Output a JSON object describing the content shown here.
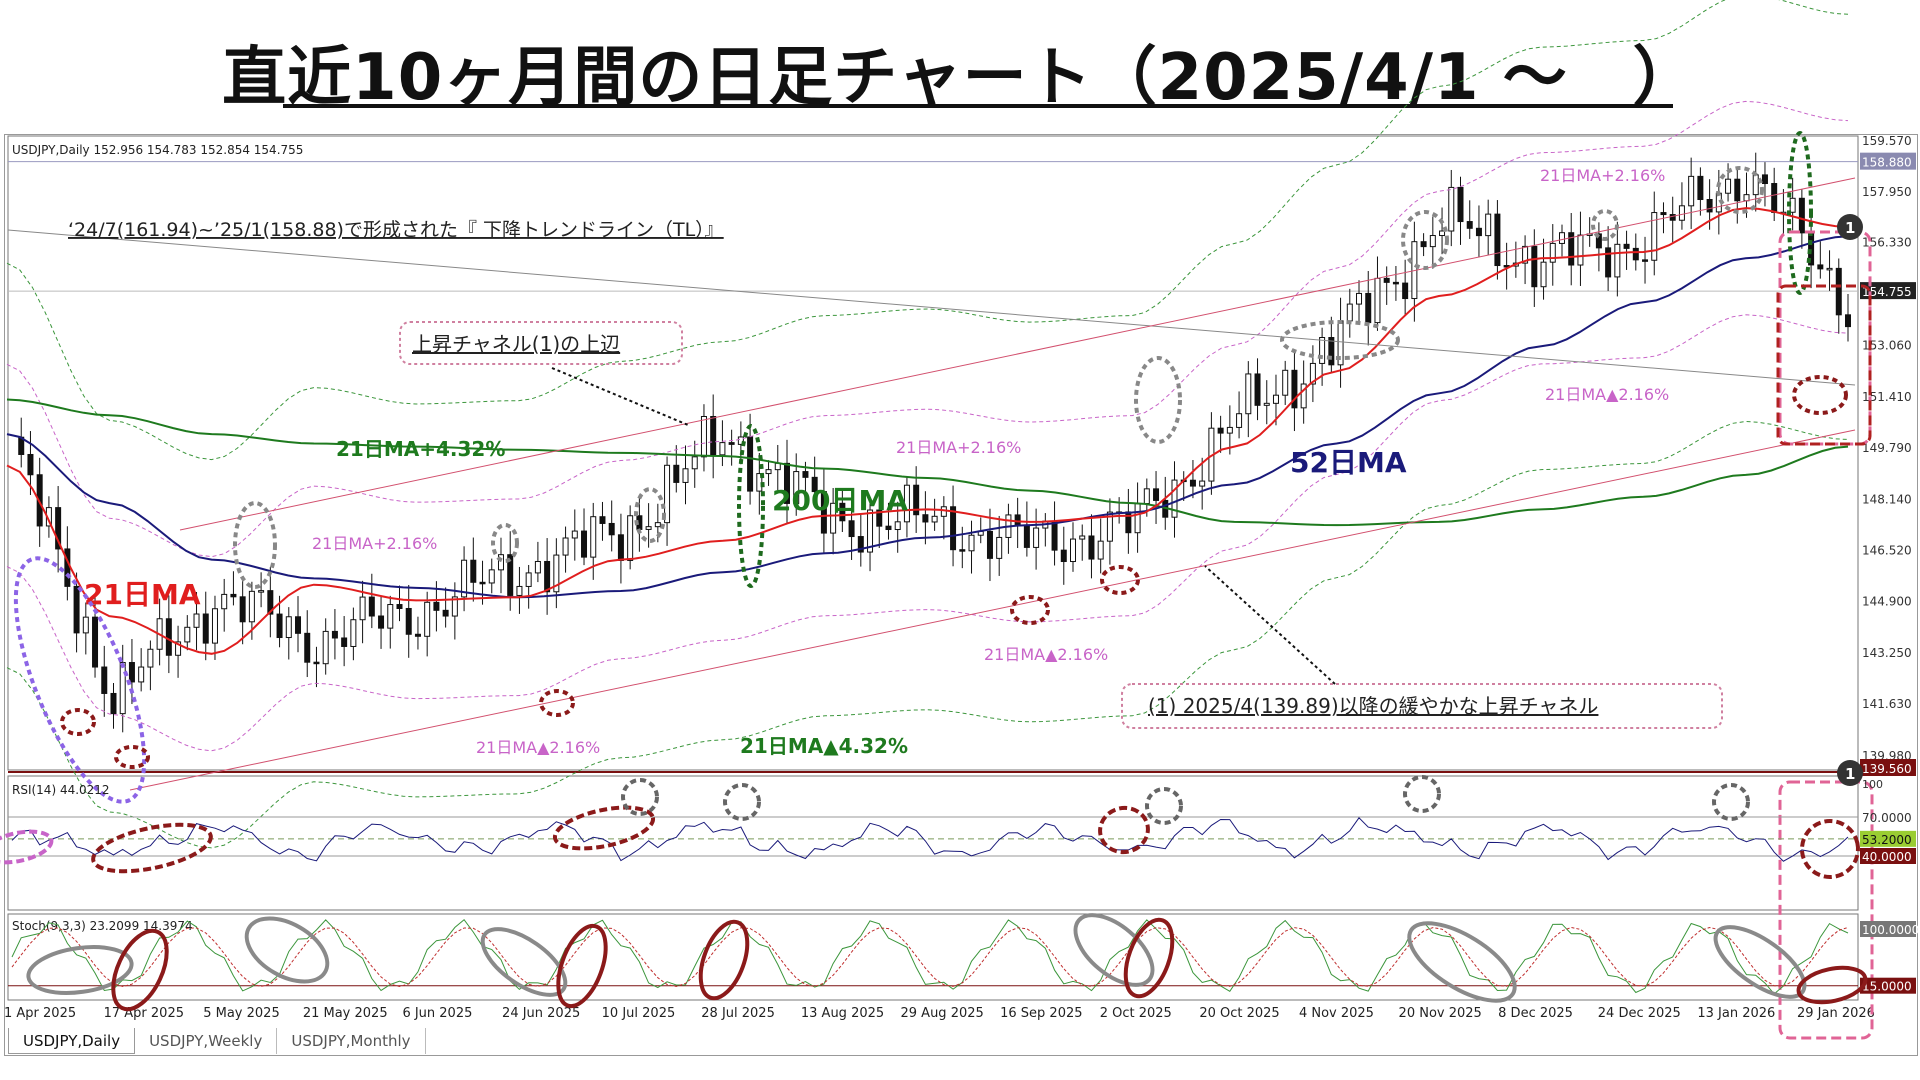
{
  "title": "直近10ヶ月間の日足チャート（2025/4/1 ～　）",
  "header": "USDJPY,Daily  152.956 154.783 152.854 154.755",
  "tabs": [
    "USDJPY,Daily",
    "USDJPY,Weekly",
    "USDJPY,Monthly"
  ],
  "annotations": {
    "trendline": "‘24/7(161.94)~’25/1(158.88)で形成された『 下降トレンドライン（TL）』",
    "channel_top": "上昇チャネル(1)の上辺",
    "channel_main": "(1) 2025/4(139.89)以降の緩やかな上昇チャネル",
    "ma21": "21日MA",
    "ma52": "52日MA",
    "ma200": "200日MA",
    "plus432": "21日MA+4.32%",
    "minus432": "21日MA▲4.32%",
    "plus216_a": "21日MA+2.16%",
    "plus216_b": "21日MA+2.16%",
    "plus216_c": "21日MA+2.16%",
    "minus216_a": "21日MA▲2.16%",
    "minus216_b": "21日MA▲2.16%",
    "minus216_c": "21日MA▲2.16%",
    "marker1": "1",
    "marker2": "1"
  },
  "price_axis": [
    "159.570",
    "158.880",
    "157.950",
    "156.330",
    "154.755",
    "153.060",
    "151.410",
    "149.790",
    "148.140",
    "146.520",
    "144.900",
    "143.250",
    "141.630",
    "139.980",
    "139.560"
  ],
  "rsi": {
    "label": "RSI(14) 44.0212",
    "levels": [
      "70.0000",
      "53.2000",
      "40.0000"
    ],
    "top_tick": "100"
  },
  "stoch": {
    "label": "Stoch(9,3,3) 23.2099 14.3974",
    "levels": [
      "100.0000",
      "15.0000"
    ]
  },
  "date_axis": [
    "1 Apr 2025",
    "17 Apr 2025",
    "5 May 2025",
    "21 May 2025",
    "6 Jun 2025",
    "24 Jun 2025",
    "10 Jul 2025",
    "28 Jul 2025",
    "13 Aug 2025",
    "29 Aug 2025",
    "16 Sep 2025",
    "2 Oct 2025",
    "20 Oct 2025",
    "4 Nov 2025",
    "20 Nov 2025",
    "8 Dec 2025",
    "24 Dec 2025",
    "13 Jan 2026",
    "29 Jan 2026"
  ],
  "colors": {
    "ma21": "#e01e1e",
    "ma52": "#1a1a7a",
    "ma200": "#1e7a1e",
    "band": "#c864c8",
    "band432": "#3c963c",
    "channel": "#d2506e",
    "ellipse_dark": "#8b1a1a",
    "ellipse_gray": "#888888",
    "ellipse_purple": "#8c64e6",
    "highlight": "#e06496"
  },
  "chart_data": {
    "type": "candlestick",
    "title": "USDJPY,Daily",
    "ylim": [
      139.56,
      159.57
    ],
    "ohlc_last": {
      "open": 152.956,
      "high": 154.783,
      "low": 152.854,
      "close": 154.755
    },
    "x": [
      "1 Apr 2025",
      "17 Apr 2025",
      "5 May 2025",
      "21 May 2025",
      "6 Jun 2025",
      "24 Jun 2025",
      "10 Jul 2025",
      "28 Jul 2025",
      "13 Aug 2025",
      "29 Aug 2025",
      "16 Sep 2025",
      "2 Oct 2025",
      "20 Oct 2025",
      "4 Nov 2025",
      "20 Nov 2025",
      "8 Dec 2025",
      "24 Dec 2025",
      "13 Jan 2026",
      "29 Jan 2026"
    ],
    "close": [
      149.8,
      141.8,
      145.0,
      143.6,
      144.6,
      145.9,
      147.1,
      150.2,
      147.5,
      147.4,
      146.7,
      147.3,
      150.6,
      153.2,
      157.0,
      155.7,
      156.4,
      158.6,
      154.4
    ],
    "series": [
      {
        "name": "21日MA",
        "values": [
          149.2,
          144.4,
          143.2,
          145.4,
          144.9,
          145.0,
          146.2,
          146.8,
          147.6,
          147.8,
          147.4,
          147.6,
          149.8,
          152.2,
          154.6,
          155.8,
          156.0,
          157.4,
          156.8
        ]
      },
      {
        "name": "52日MA",
        "values": [
          150.2,
          148.0,
          146.2,
          145.6,
          145.3,
          145.0,
          145.2,
          145.8,
          146.4,
          146.9,
          147.3,
          147.7,
          148.6,
          149.9,
          151.5,
          153.0,
          154.4,
          155.8,
          156.5
        ]
      },
      {
        "name": "200日MA",
        "values": [
          151.3,
          150.8,
          150.2,
          149.9,
          149.8,
          149.7,
          149.6,
          149.5,
          149.1,
          148.8,
          148.4,
          148.0,
          147.4,
          147.3,
          147.4,
          147.8,
          148.2,
          148.9,
          149.8
        ]
      }
    ],
    "rsi_last": 44.0212,
    "stoch_last": [
      23.2099,
      14.3974
    ]
  }
}
